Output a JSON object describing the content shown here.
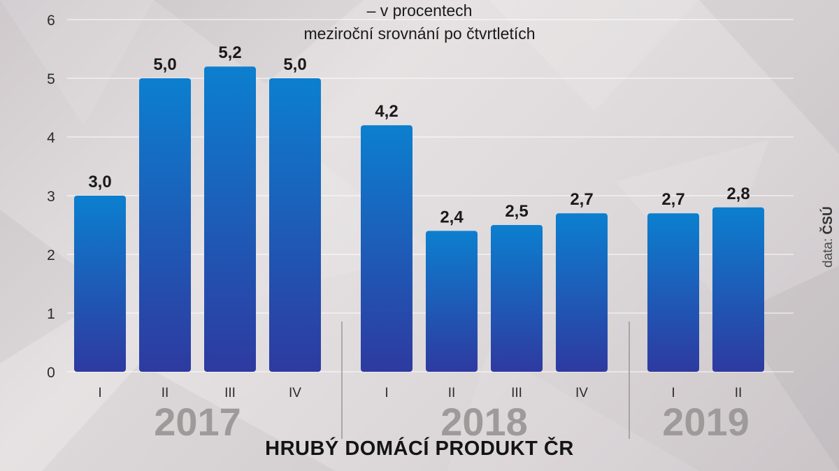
{
  "chart_data": {
    "type": "bar",
    "title": "HRUBÝ DOMÁCÍ PRODUKT ČR",
    "subtitle_lines": [
      "– v procentech",
      "meziroční srovnání po čtvrtletích"
    ],
    "source_prefix": "data:",
    "source_name": "ČSÚ",
    "ylim": [
      0,
      6
    ],
    "yticks": [
      "0",
      "1",
      "2",
      "3",
      "4",
      "5",
      "6"
    ],
    "grid": true,
    "groups": [
      {
        "year": "2017",
        "categories": [
          "I",
          "II",
          "III",
          "IV"
        ],
        "values": [
          3.0,
          5.0,
          5.2,
          5.0
        ],
        "labels": [
          "3,0",
          "5,0",
          "5,2",
          "5,0"
        ]
      },
      {
        "year": "2018",
        "categories": [
          "I",
          "II",
          "III",
          "IV"
        ],
        "values": [
          4.2,
          2.4,
          2.5,
          2.7
        ],
        "labels": [
          "4,2",
          "2,4",
          "2,5",
          "2,7"
        ]
      },
      {
        "year": "2019",
        "categories": [
          "I",
          "II"
        ],
        "values": [
          2.7,
          2.8
        ],
        "labels": [
          "2,7",
          "2,8"
        ]
      }
    ],
    "colors": {
      "bar_top": "#0c7fcf",
      "bar_bottom": "#2e3aa0",
      "year_label": "#9e9a9a",
      "grid": "#ffffff"
    }
  }
}
